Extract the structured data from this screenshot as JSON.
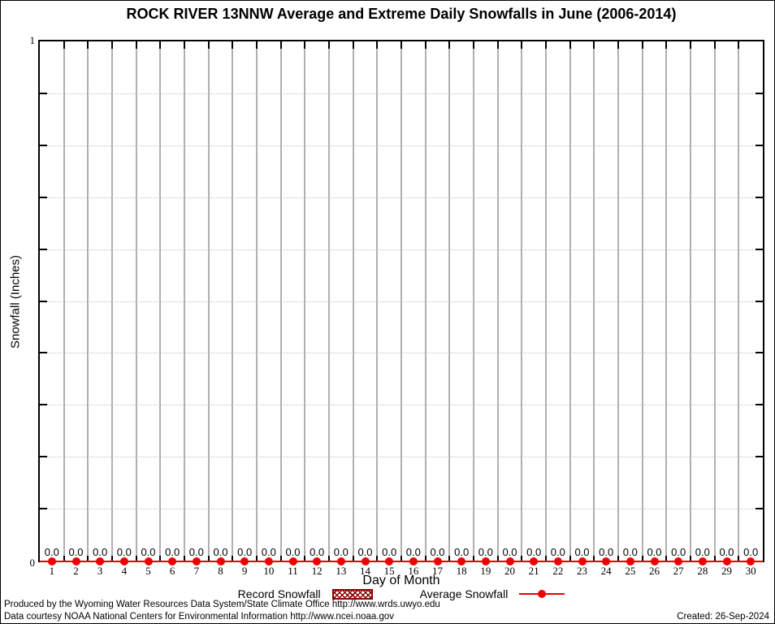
{
  "title": "ROCK RIVER 13NNW Average and Extreme Daily Snowfalls in June (2006-2014)",
  "axes": {
    "ylabel": "Snowfall (Inches)",
    "xlabel": "Day of Month",
    "ytick_top": "1",
    "ytick_bottom": "0"
  },
  "legend": {
    "items": [
      {
        "label": "Record Snowfall",
        "swatch": "hatched-box",
        "color": "#8b0000"
      },
      {
        "label": "Average Snowfall",
        "swatch": "line-with-point",
        "color": "#ee0000"
      }
    ]
  },
  "footer": {
    "line1": "Produced by the Wyoming Water Resources Data System/State Climate Office http://www.wrds.uwyo.edu",
    "line2": "Data courtesy NOAA National Centers for Environmental Information http://www.ncei.noaa.gov",
    "created": "Created: 26-Sep-2024"
  },
  "colors": {
    "average_line": "#ee0000",
    "record_fill": "#8b0000",
    "vertical_grid": "#b0b0b0",
    "horizontal_grid_dotted": "#c0c0c0",
    "frame": "#000000",
    "background": "#ffffff"
  },
  "chart_data": {
    "type": "line",
    "title": "ROCK RIVER 13NNW Average and Extreme Daily Snowfalls in June (2006-2014)",
    "xlabel": "Day of Month",
    "ylabel": "Snowfall (Inches)",
    "x": [
      1,
      2,
      3,
      4,
      5,
      6,
      7,
      8,
      9,
      10,
      11,
      12,
      13,
      14,
      15,
      16,
      17,
      18,
      19,
      20,
      21,
      22,
      23,
      24,
      25,
      26,
      27,
      28,
      29,
      30
    ],
    "series": [
      {
        "name": "Record Snowfall",
        "render": "bar",
        "values": [
          0,
          0,
          0,
          0,
          0,
          0,
          0,
          0,
          0,
          0,
          0,
          0,
          0,
          0,
          0,
          0,
          0,
          0,
          0,
          0,
          0,
          0,
          0,
          0,
          0,
          0,
          0,
          0,
          0,
          0
        ]
      },
      {
        "name": "Average Snowfall",
        "render": "line-point",
        "values": [
          0,
          0,
          0,
          0,
          0,
          0,
          0,
          0,
          0,
          0,
          0,
          0,
          0,
          0,
          0,
          0,
          0,
          0,
          0,
          0,
          0,
          0,
          0,
          0,
          0,
          0,
          0,
          0,
          0,
          0
        ]
      }
    ],
    "point_value_labels": [
      "0.0",
      "0.0",
      "0.0",
      "0.0",
      "0.0",
      "0.0",
      "0.0",
      "0.0",
      "0.0",
      "0.0",
      "0.0",
      "0.0",
      "0.0",
      "0.0",
      "0.0",
      "0.0",
      "0.0",
      "0.0",
      "0.0",
      "0.0",
      "0.0",
      "0.0",
      "0.0",
      "0.0",
      "0.0",
      "0.0",
      "0.0",
      "0.0",
      "0.0",
      "0.0"
    ],
    "ylim": [
      0,
      1
    ],
    "xlim": [
      0.5,
      30.5
    ],
    "yticks_labeled": [
      0,
      1
    ],
    "ygrid_dotted_step": 0.1,
    "xgrid": "solid vertical line at each day boundary",
    "legend_position": "bottom-center",
    "grid": true
  }
}
